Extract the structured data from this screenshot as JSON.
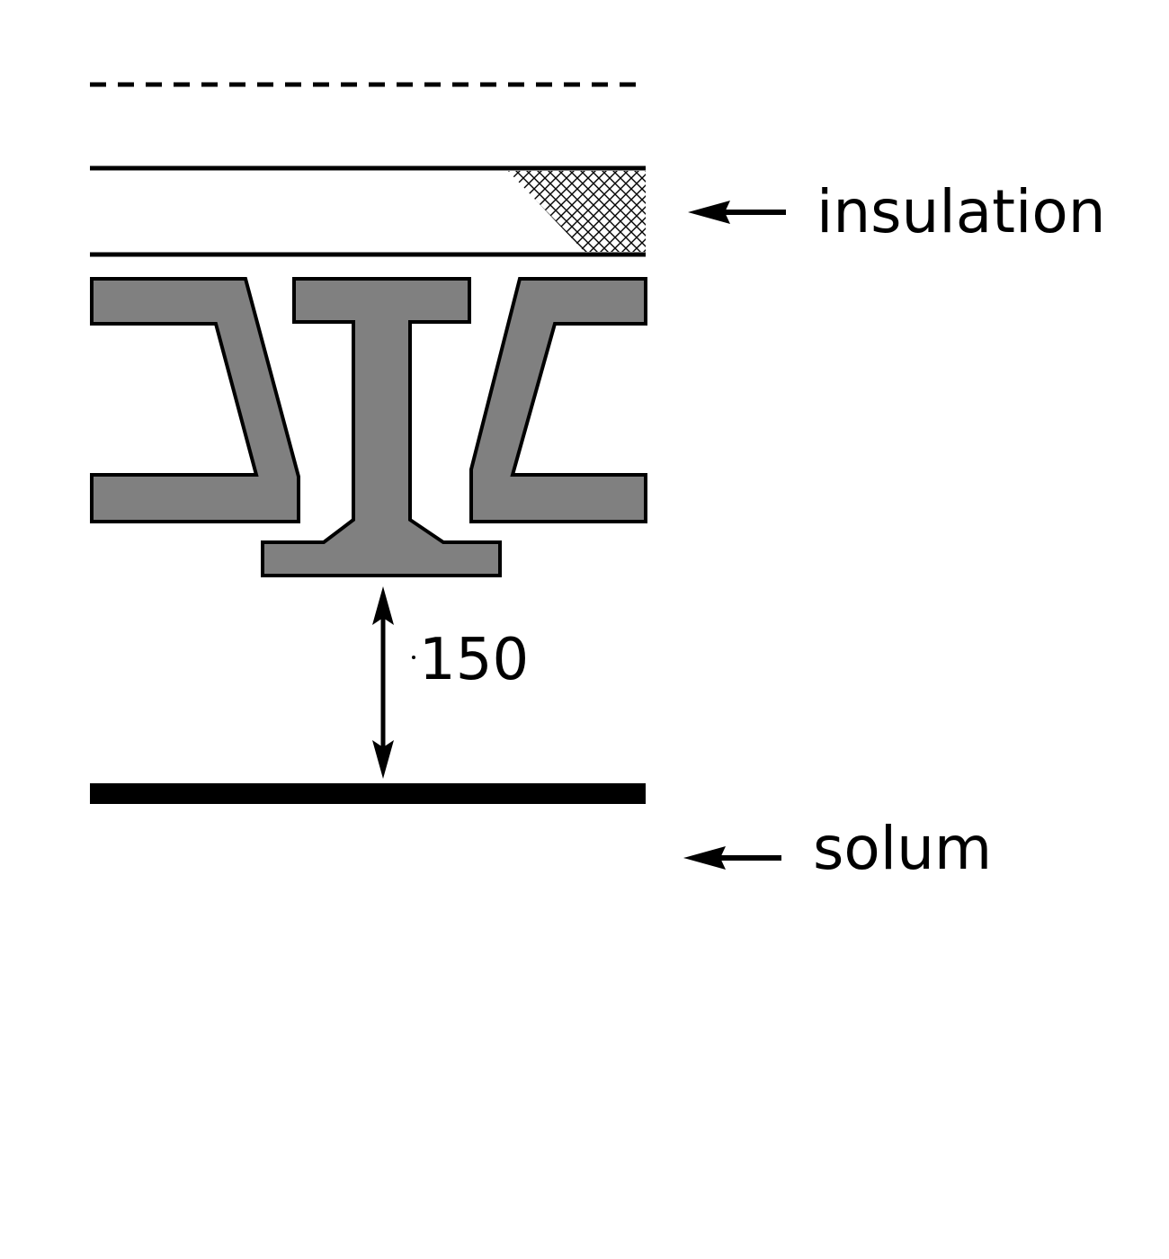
{
  "labels": {
    "insulation": "insulation",
    "solum": "solum",
    "clearance": "150"
  },
  "colors": {
    "ink": "#000000",
    "joist_fill": "#808080",
    "background": "#ffffff"
  }
}
